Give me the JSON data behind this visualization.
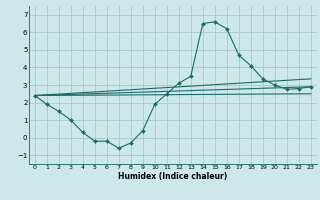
{
  "xlabel": "Humidex (Indice chaleur)",
  "ylabel": "",
  "bg_color": "#cce8e8",
  "grid_color": "#aac8c8",
  "line_color": "#1a6b6b",
  "xlim": [
    -0.5,
    23.5
  ],
  "ylim": [
    -1.5,
    7.5
  ],
  "xticks": [
    0,
    1,
    2,
    3,
    4,
    5,
    6,
    7,
    8,
    9,
    10,
    11,
    12,
    13,
    14,
    15,
    16,
    17,
    18,
    19,
    20,
    21,
    22,
    23
  ],
  "yticks": [
    -1,
    0,
    1,
    2,
    3,
    4,
    5,
    6,
    7
  ],
  "series1_x": [
    0,
    1,
    2,
    3,
    4,
    5,
    6,
    7,
    8,
    9,
    10,
    11,
    12,
    13,
    14,
    15,
    16,
    17,
    18,
    19,
    20,
    21,
    22,
    23
  ],
  "series1_y": [
    2.4,
    1.9,
    1.5,
    1.0,
    0.3,
    -0.2,
    -0.2,
    -0.6,
    -0.3,
    0.4,
    1.9,
    2.5,
    3.1,
    3.5,
    6.5,
    6.6,
    6.2,
    4.7,
    4.1,
    3.35,
    3.0,
    2.75,
    2.8,
    2.9
  ],
  "series2_x": [
    0,
    23
  ],
  "series2_y": [
    2.4,
    3.35
  ],
  "series3_x": [
    0,
    23
  ],
  "series3_y": [
    2.4,
    2.9
  ],
  "series4_x": [
    0,
    23
  ],
  "series4_y": [
    2.4,
    2.5
  ]
}
